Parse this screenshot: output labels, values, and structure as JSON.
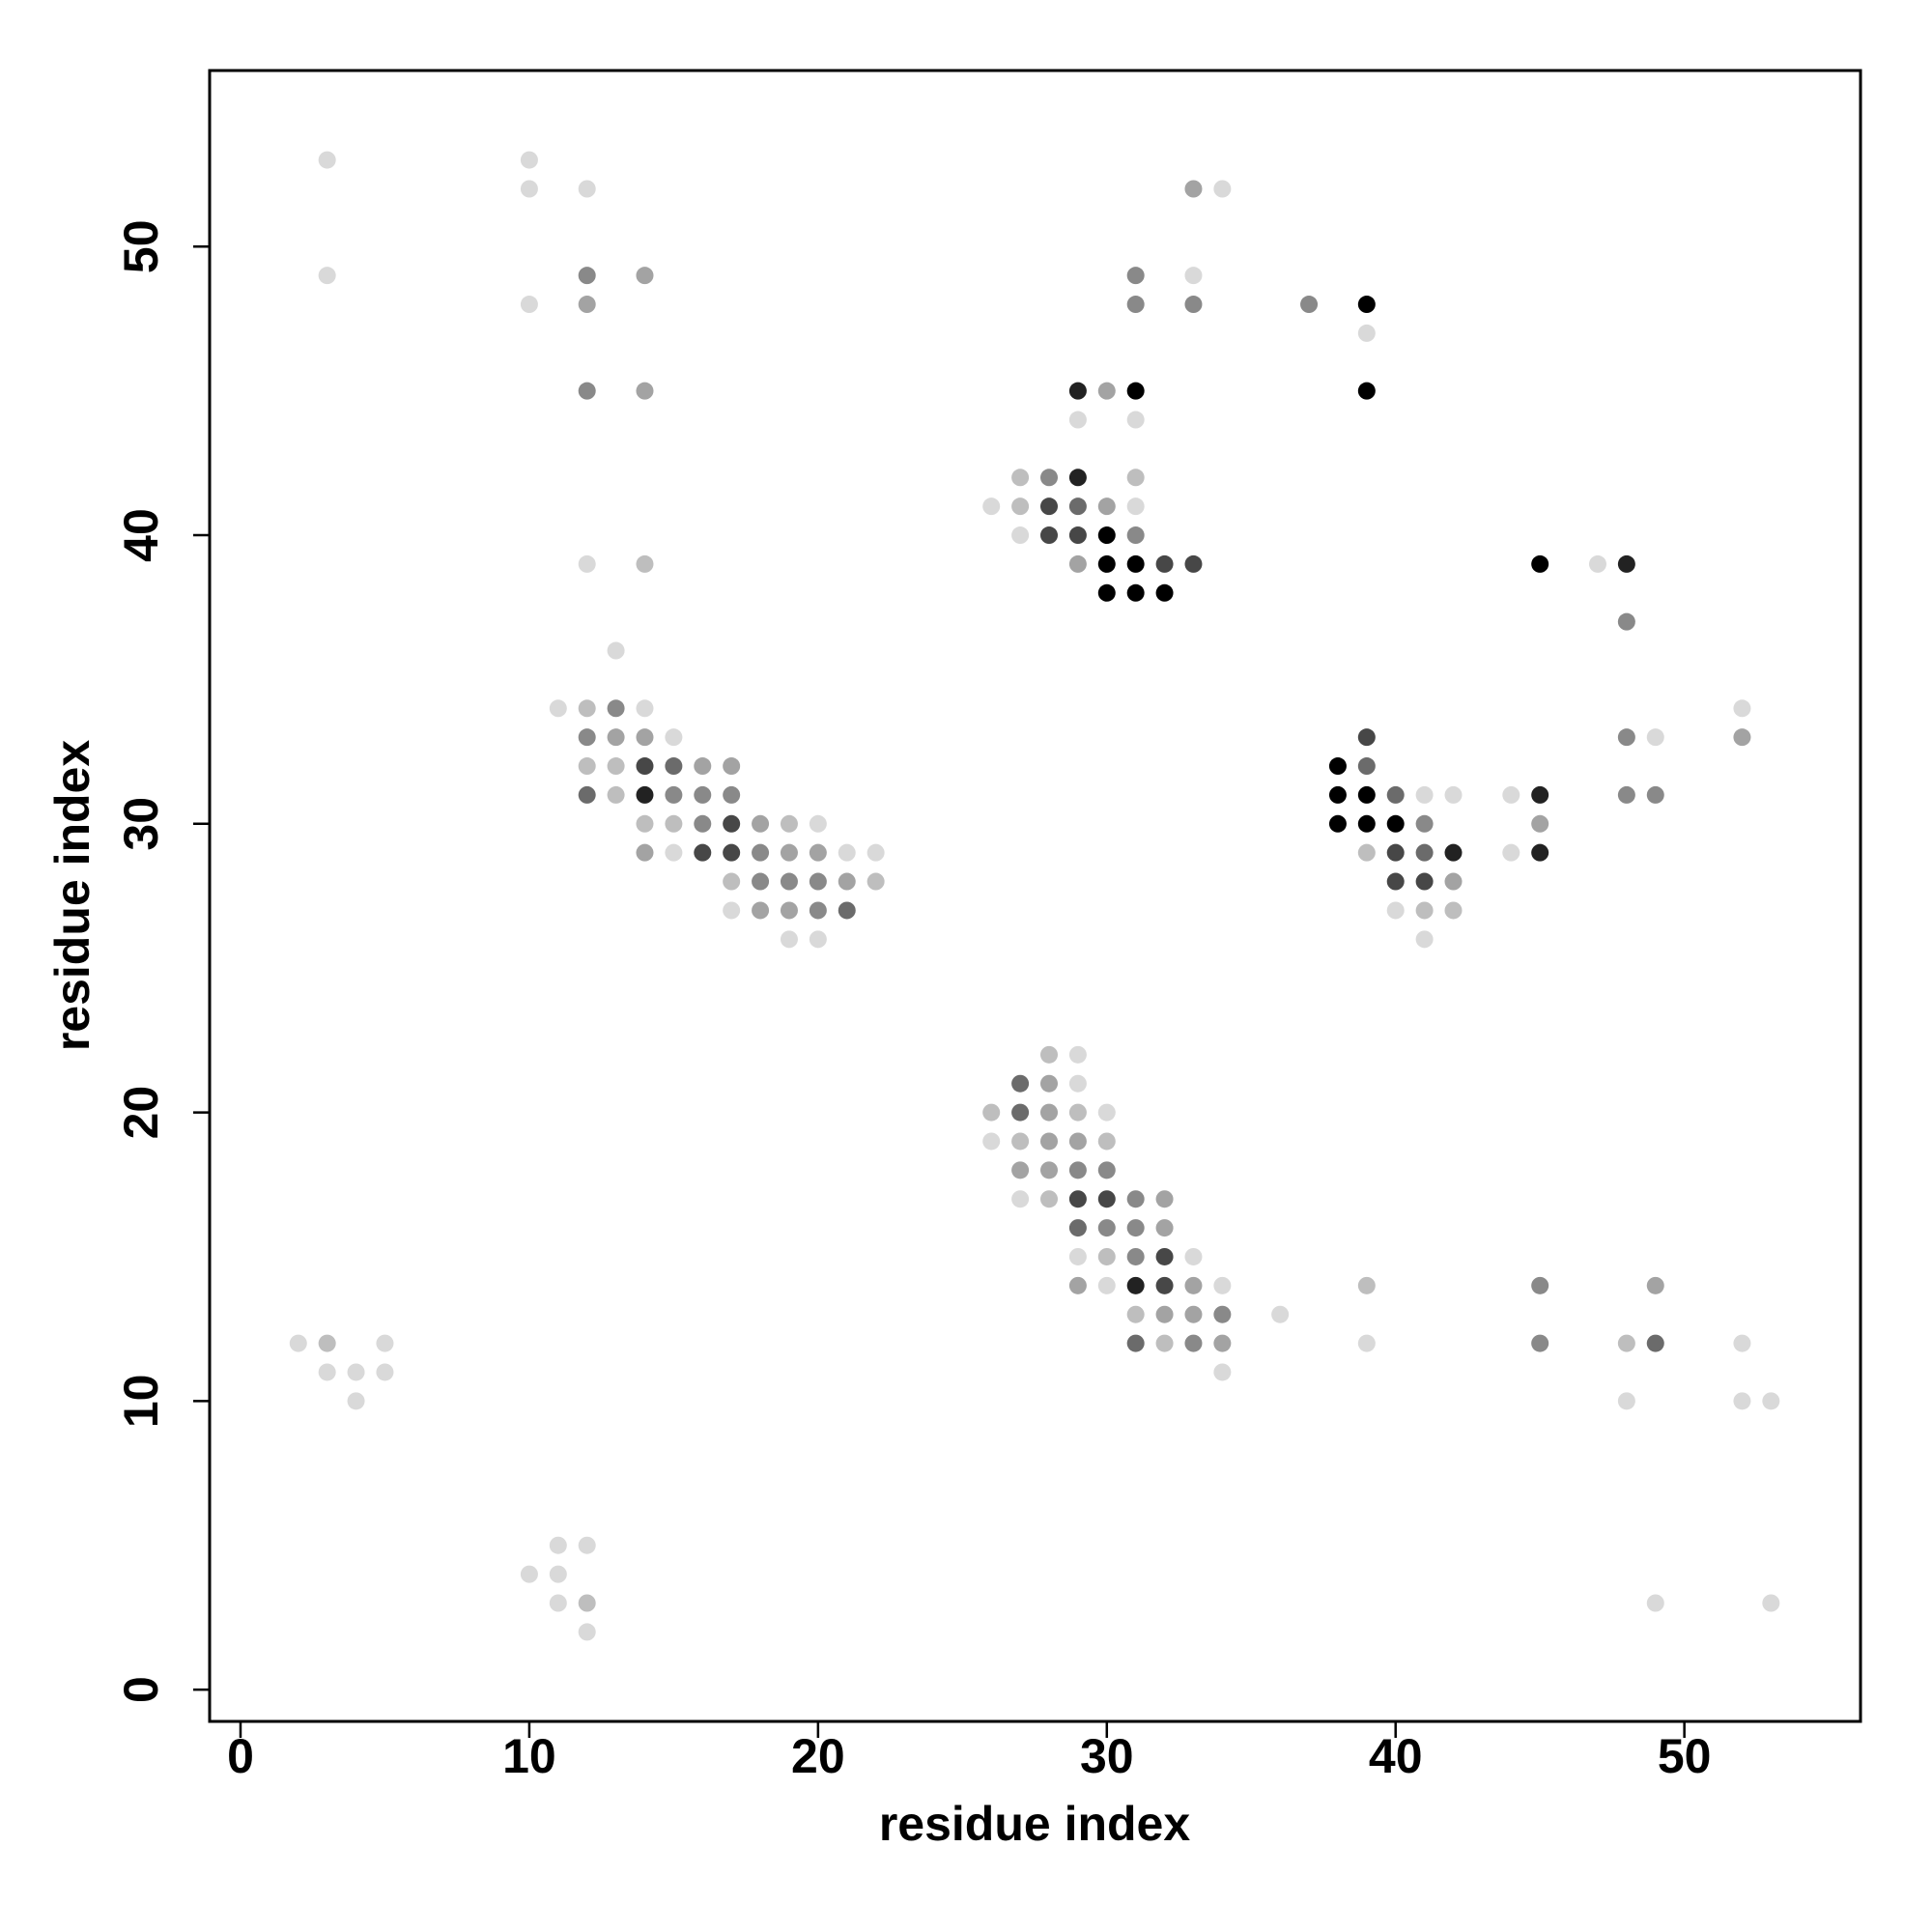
{
  "chart_data": {
    "type": "scatter",
    "xlabel": "residue index",
    "ylabel": "residue index",
    "xlim": [
      -1.07,
      56.1
    ],
    "ylim": [
      -1.1,
      56.1
    ],
    "xticks": [
      0,
      10,
      20,
      30,
      40,
      50
    ],
    "yticks": [
      0,
      10,
      20,
      30,
      40,
      50
    ],
    "x": [
      3,
      3,
      10,
      10,
      12,
      10,
      12,
      14,
      12,
      12,
      14,
      12,
      14,
      33,
      34,
      31,
      33,
      31,
      33,
      37,
      39,
      39,
      39,
      29,
      30,
      31,
      29,
      31,
      27,
      28,
      29,
      31,
      26,
      27,
      28,
      29,
      30,
      31,
      27,
      28,
      29,
      30,
      31,
      29,
      30,
      31,
      32,
      33,
      30,
      31,
      32,
      45,
      47,
      48,
      48,
      13,
      11,
      12,
      13,
      14,
      12,
      13,
      14,
      15,
      12,
      13,
      14,
      15,
      16,
      17,
      12,
      13,
      14,
      15,
      16,
      17,
      14,
      15,
      16,
      17,
      18,
      19,
      20,
      14,
      15,
      16,
      17,
      18,
      19,
      20,
      21,
      22,
      17,
      18,
      19,
      20,
      21,
      22,
      17,
      18,
      19,
      20,
      21,
      19,
      20,
      39,
      39,
      38,
      38,
      39,
      40,
      41,
      42,
      38,
      39,
      40,
      41,
      39,
      40,
      41,
      42,
      40,
      41,
      42,
      40,
      41,
      42,
      41,
      44,
      45,
      45,
      44,
      45,
      48,
      49,
      48,
      49,
      52,
      52,
      28,
      29,
      27,
      28,
      29,
      26,
      27,
      28,
      29,
      30,
      26,
      27,
      28,
      29,
      30,
      27,
      28,
      29,
      30,
      27,
      28,
      29,
      30,
      31,
      32,
      29,
      30,
      31,
      32,
      29,
      30,
      31,
      32,
      33,
      29,
      30,
      31,
      32,
      33,
      34,
      31,
      32,
      33,
      34,
      36,
      31,
      32,
      33,
      34,
      34,
      39,
      39,
      45,
      45,
      49,
      48,
      49,
      52,
      48,
      52,
      53,
      2,
      3,
      5,
      3,
      4,
      5,
      4,
      11,
      12,
      10,
      11,
      11,
      12,
      12,
      49,
      53
    ],
    "y": [
      53,
      49,
      53,
      52,
      52,
      48,
      49,
      49,
      48,
      45,
      45,
      39,
      39,
      52,
      52,
      49,
      49,
      48,
      48,
      48,
      48,
      47,
      45,
      45,
      45,
      45,
      44,
      44,
      42,
      42,
      42,
      42,
      41,
      41,
      41,
      41,
      41,
      41,
      40,
      40,
      40,
      40,
      40,
      39,
      39,
      39,
      39,
      39,
      38,
      38,
      38,
      39,
      39,
      39,
      37,
      36,
      34,
      34,
      34,
      34,
      33,
      33,
      33,
      33,
      32,
      32,
      32,
      32,
      32,
      32,
      31,
      31,
      31,
      31,
      31,
      31,
      30,
      30,
      30,
      30,
      30,
      30,
      30,
      29,
      29,
      29,
      29,
      29,
      29,
      29,
      29,
      29,
      28,
      28,
      28,
      28,
      28,
      28,
      27,
      27,
      27,
      27,
      27,
      26,
      26,
      33,
      32,
      32,
      31,
      31,
      31,
      31,
      31,
      30,
      30,
      30,
      30,
      29,
      29,
      29,
      29,
      28,
      28,
      28,
      27,
      27,
      27,
      26,
      31,
      31,
      30,
      29,
      29,
      33,
      33,
      31,
      31,
      34,
      33,
      22,
      22,
      21,
      21,
      21,
      20,
      20,
      20,
      20,
      20,
      19,
      19,
      19,
      19,
      19,
      18,
      18,
      18,
      18,
      17,
      17,
      17,
      17,
      17,
      17,
      16,
      16,
      16,
      16,
      15,
      15,
      15,
      15,
      15,
      14,
      14,
      14,
      14,
      14,
      14,
      13,
      13,
      13,
      13,
      13,
      12,
      12,
      12,
      12,
      11,
      14,
      12,
      14,
      12,
      14,
      12,
      12,
      12,
      10,
      10,
      10,
      12,
      12,
      12,
      11,
      11,
      11,
      10,
      5,
      5,
      4,
      4,
      3,
      3,
      2,
      3,
      3
    ],
    "colors": [
      "#d9d9d9",
      "#d9d9d9",
      "#d9d9d9",
      "#d9d9d9",
      "#d9d9d9",
      "#d9d9d9",
      "#898989",
      "#a3a3a3",
      "#a3a3a3",
      "#898989",
      "#a3a3a3",
      "#d9d9d9",
      "#bebebe",
      "#a3a3a3",
      "#d9d9d9",
      "#898989",
      "#d9d9d9",
      "#898989",
      "#898989",
      "#898989",
      "#000000",
      "#d9d9d9",
      "#000000",
      "#222222",
      "#a3a3a3",
      "#000000",
      "#d9d9d9",
      "#d9d9d9",
      "#bebebe",
      "#898989",
      "#222222",
      "#bebebe",
      "#d9d9d9",
      "#bebebe",
      "#474747",
      "#6b6b6b",
      "#a3a3a3",
      "#d9d9d9",
      "#d9d9d9",
      "#474747",
      "#474747",
      "#000000",
      "#898989",
      "#a3a3a3",
      "#000000",
      "#000000",
      "#474747",
      "#474747",
      "#000000",
      "#000000",
      "#000000",
      "#000000",
      "#d9d9d9",
      "#222222",
      "#898989",
      "#d9d9d9",
      "#d9d9d9",
      "#bebebe",
      "#898989",
      "#d9d9d9",
      "#898989",
      "#a3a3a3",
      "#a3a3a3",
      "#d9d9d9",
      "#bebebe",
      "#bebebe",
      "#474747",
      "#6b6b6b",
      "#a3a3a3",
      "#a3a3a3",
      "#6b6b6b",
      "#bebebe",
      "#222222",
      "#898989",
      "#898989",
      "#898989",
      "#bebebe",
      "#bebebe",
      "#898989",
      "#474747",
      "#a3a3a3",
      "#bebebe",
      "#d9d9d9",
      "#a3a3a3",
      "#d9d9d9",
      "#474747",
      "#474747",
      "#898989",
      "#a3a3a3",
      "#a3a3a3",
      "#d9d9d9",
      "#d9d9d9",
      "#bebebe",
      "#898989",
      "#898989",
      "#898989",
      "#a3a3a3",
      "#bebebe",
      "#d9d9d9",
      "#a3a3a3",
      "#a3a3a3",
      "#898989",
      "#6b6b6b",
      "#d9d9d9",
      "#d9d9d9",
      "#474747",
      "#6b6b6b",
      "#000000",
      "#000000",
      "#000000",
      "#6b6b6b",
      "#d9d9d9",
      "#d9d9d9",
      "#000000",
      "#000000",
      "#000000",
      "#898989",
      "#bebebe",
      "#474747",
      "#6b6b6b",
      "#222222",
      "#474747",
      "#474747",
      "#a3a3a3",
      "#d9d9d9",
      "#bebebe",
      "#bebebe",
      "#d9d9d9",
      "#d9d9d9",
      "#222222",
      "#a3a3a3",
      "#d9d9d9",
      "#222222",
      "#898989",
      "#d9d9d9",
      "#898989",
      "#898989",
      "#d9d9d9",
      "#a3a3a3",
      "#bebebe",
      "#d9d9d9",
      "#6b6b6b",
      "#a3a3a3",
      "#d9d9d9",
      "#bebebe",
      "#6b6b6b",
      "#a3a3a3",
      "#bebebe",
      "#d9d9d9",
      "#d9d9d9",
      "#bebebe",
      "#a3a3a3",
      "#a3a3a3",
      "#bebebe",
      "#a3a3a3",
      "#a3a3a3",
      "#898989",
      "#898989",
      "#d9d9d9",
      "#bebebe",
      "#474747",
      "#474747",
      "#898989",
      "#a3a3a3",
      "#6b6b6b",
      "#898989",
      "#898989",
      "#a3a3a3",
      "#d9d9d9",
      "#bebebe",
      "#898989",
      "#474747",
      "#d9d9d9",
      "#a3a3a3",
      "#d9d9d9",
      "#222222",
      "#474747",
      "#a3a3a3",
      "#d9d9d9",
      "#bebebe",
      "#a3a3a3",
      "#a3a3a3",
      "#898989",
      "#d9d9d9",
      "#6b6b6b",
      "#bebebe",
      "#898989",
      "#a3a3a3",
      "#d9d9d9",
      "#bebebe",
      "#d9d9d9",
      "#898989",
      "#898989",
      "#a3a3a3",
      "#bebebe",
      "#6b6b6b",
      "#d9d9d9",
      "#d9d9d9",
      "#d9d9d9",
      "#d9d9d9",
      "#d9d9d9",
      "#bebebe",
      "#d9d9d9",
      "#d9d9d9",
      "#d9d9d9",
      "#d9d9d9",
      "#d9d9d9",
      "#d9d9d9",
      "#d9d9d9",
      "#d9d9d9",
      "#d9d9d9",
      "#d9d9d9",
      "#bebebe",
      "#d9d9d9",
      "#d9d9d9",
      "#d9d9d9"
    ]
  }
}
